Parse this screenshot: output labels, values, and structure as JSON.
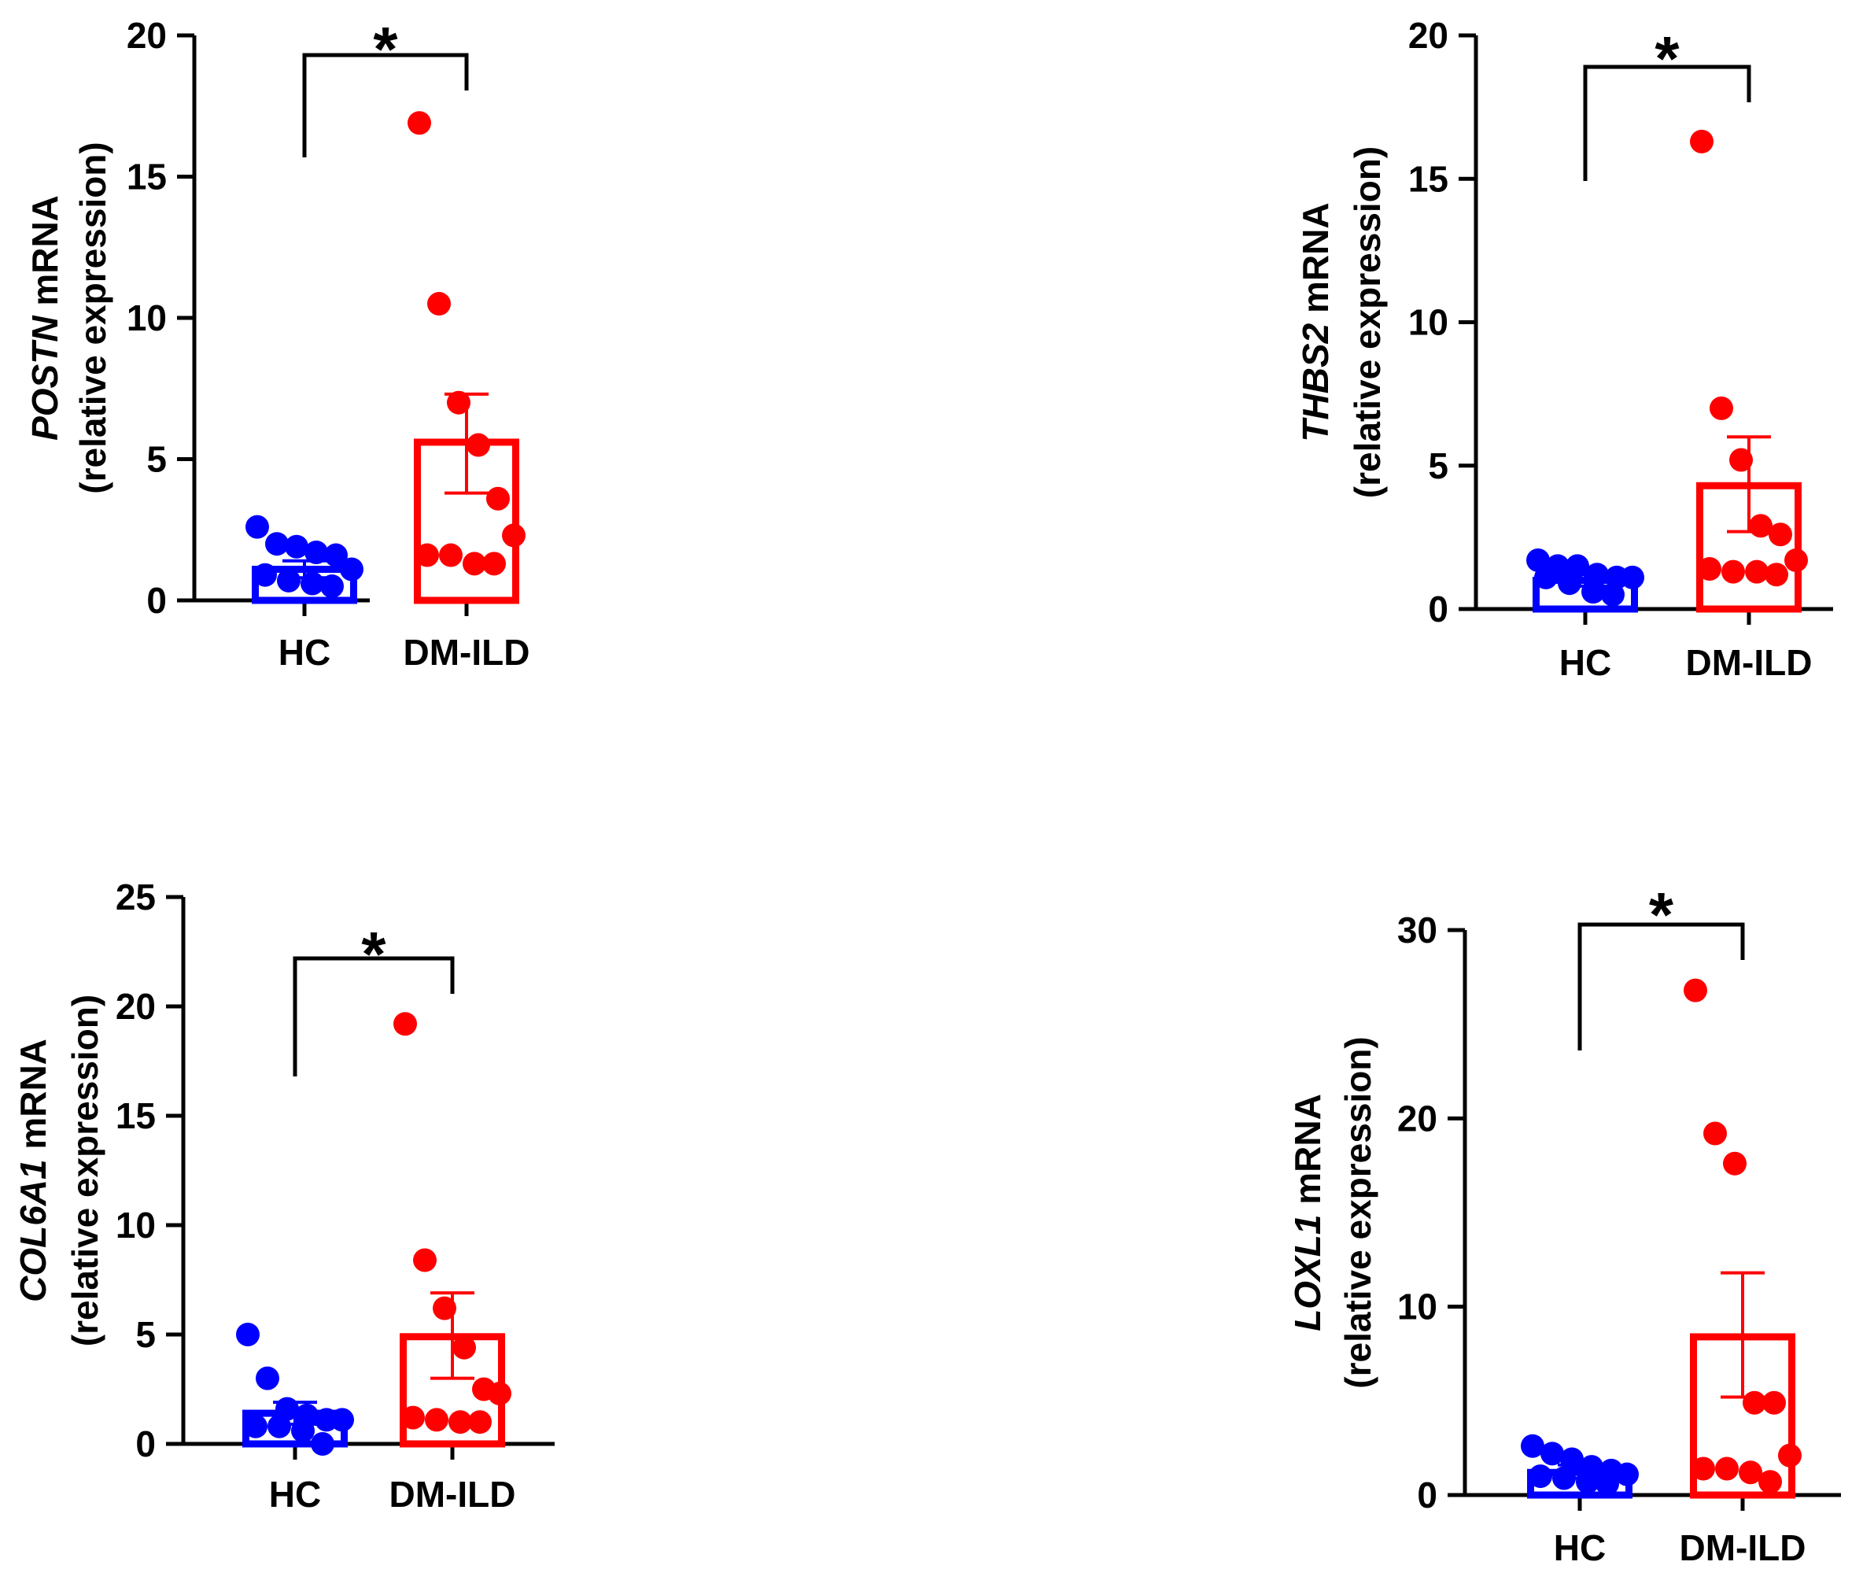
{
  "figure": {
    "colors": {
      "hc": "#0000ff",
      "dm": "#ff0000",
      "axis": "#000000"
    }
  },
  "chart_data": [
    {
      "type": "bar",
      "panel": "top-left",
      "gene": "POSTN",
      "ylabel_suffix": " mRNA",
      "ylabel_line2": "(relative expression)",
      "categories": [
        "HC",
        "DM-ILD"
      ],
      "ylim": [
        0,
        20
      ],
      "yticks": [
        0,
        5,
        10,
        15,
        20
      ],
      "bar_values": [
        1.1,
        5.6
      ],
      "sem_upper": [
        1.4,
        7.3
      ],
      "sem_lower": [
        0.8,
        3.8
      ],
      "points": [
        [
          2.6,
          2.0,
          1.9,
          1.7,
          1.6,
          1.1,
          0.9,
          0.7,
          0.6,
          0.5
        ],
        [
          16.9,
          10.5,
          7.0,
          5.5,
          3.6,
          2.3,
          1.6,
          1.6,
          1.3,
          1.3
        ]
      ],
      "significance": "*"
    },
    {
      "type": "bar",
      "panel": "top-right",
      "gene": "THBS2",
      "ylabel_suffix": " mRNA",
      "ylabel_line2": "(relative expression)",
      "categories": [
        "HC",
        "DM-ILD"
      ],
      "ylim": [
        0,
        20
      ],
      "yticks": [
        0,
        5,
        10,
        15,
        20
      ],
      "bar_values": [
        1.0,
        4.3
      ],
      "sem_upper": [
        1.2,
        6.0
      ],
      "sem_lower": [
        0.8,
        2.7
      ],
      "points": [
        [
          1.7,
          1.5,
          1.5,
          1.2,
          1.1,
          1.1,
          1.1,
          0.9,
          0.6,
          0.5
        ],
        [
          16.3,
          7.0,
          5.2,
          2.9,
          2.6,
          1.7,
          1.4,
          1.3,
          1.3,
          1.2
        ]
      ],
      "significance": "*"
    },
    {
      "type": "bar",
      "panel": "bottom-left",
      "gene": "COL6A1",
      "ylabel_suffix": " mRNA",
      "ylabel_line2": "(relative expression)",
      "categories": [
        "HC",
        "DM-ILD"
      ],
      "ylim": [
        0,
        25
      ],
      "yticks": [
        0,
        5,
        10,
        15,
        20,
        25
      ],
      "bar_values": [
        1.4,
        4.9
      ],
      "sem_upper": [
        1.9,
        6.9
      ],
      "sem_lower": [
        0.9,
        3.0
      ],
      "points": [
        [
          5.0,
          3.0,
          1.6,
          1.3,
          1.1,
          1.1,
          0.8,
          0.8,
          0.6,
          0.0
        ],
        [
          19.2,
          8.4,
          6.2,
          4.4,
          2.5,
          2.3,
          1.2,
          1.1,
          1.0,
          1.0
        ]
      ],
      "significance": "*"
    },
    {
      "type": "bar",
      "panel": "bottom-right",
      "gene": "LOXL1",
      "ylabel_suffix": " mRNA",
      "ylabel_line2": "(relative expression)",
      "categories": [
        "HC",
        "DM-ILD"
      ],
      "ylim": [
        0,
        30
      ],
      "yticks": [
        0,
        10,
        20,
        30
      ],
      "bar_values": [
        1.2,
        8.4
      ],
      "sem_upper": [
        1.6,
        11.8
      ],
      "sem_lower": [
        0.9,
        5.2
      ],
      "points": [
        [
          2.6,
          2.2,
          1.9,
          1.5,
          1.3,
          1.1,
          1.0,
          0.9,
          0.7,
          0.6
        ],
        [
          26.8,
          19.2,
          17.6,
          4.9,
          4.9,
          2.1,
          1.4,
          1.4,
          1.2,
          0.7
        ]
      ],
      "significance": "*"
    }
  ]
}
